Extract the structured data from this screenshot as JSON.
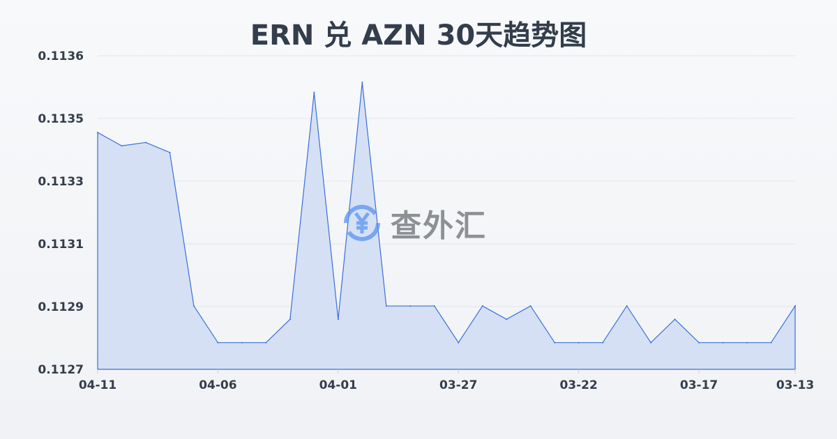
{
  "chart_data": {
    "type": "area",
    "title": "ERN 兑 AZN 30天趋势图",
    "xlabel": "",
    "ylabel": "",
    "x": [
      "04-11",
      "04-10",
      "04-09",
      "04-08",
      "04-07",
      "04-06",
      "04-05",
      "04-04",
      "04-03",
      "04-02",
      "04-01",
      "03-31",
      "03-30",
      "03-29",
      "03-28",
      "03-27",
      "03-26",
      "03-25",
      "03-24",
      "03-23",
      "03-22",
      "03-21",
      "03-20",
      "03-19",
      "03-18",
      "03-17",
      "03-16",
      "03-15",
      "03-14",
      "03-13"
    ],
    "values": [
      0.11341,
      0.11337,
      0.11338,
      0.11335,
      0.11289,
      0.11278,
      0.11278,
      0.11278,
      0.11285,
      0.11353,
      0.11285,
      0.11356,
      0.11289,
      0.11289,
      0.11289,
      0.11278,
      0.11289,
      0.11285,
      0.11289,
      0.11278,
      0.11278,
      0.11278,
      0.11289,
      0.11278,
      0.11285,
      0.11278,
      0.11278,
      0.11278,
      0.11278,
      0.11289
    ],
    "x_tick_labels": [
      "04-11",
      "04-06",
      "04-01",
      "03-27",
      "03-22",
      "03-17",
      "03-13"
    ],
    "y_tick_labels": [
      "0.1127",
      "0.1129",
      "0.1131",
      "0.1133",
      "0.1135",
      "0.1136"
    ],
    "ylim": [
      0.1127,
      0.11364
    ],
    "grid": true,
    "line_color": "#3a6fd8",
    "fill_color": "#d5e0f5"
  },
  "watermark": {
    "text": "查外汇",
    "icon": "yen-exchange-icon",
    "color": "#5b93f0"
  }
}
